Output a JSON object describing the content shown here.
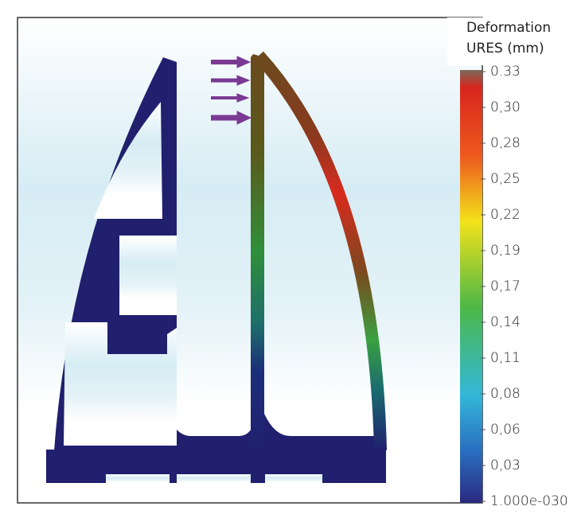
{
  "legend": {
    "title": "Deformation",
    "unit": "URES (mm)",
    "ticks": [
      "0.33",
      "0,30",
      "0,28",
      "0,25",
      "0,22",
      "0,19",
      "0,17",
      "0,14",
      "0,11",
      "0,08",
      "0,06",
      "0,03",
      "1.000e-030"
    ]
  }
}
